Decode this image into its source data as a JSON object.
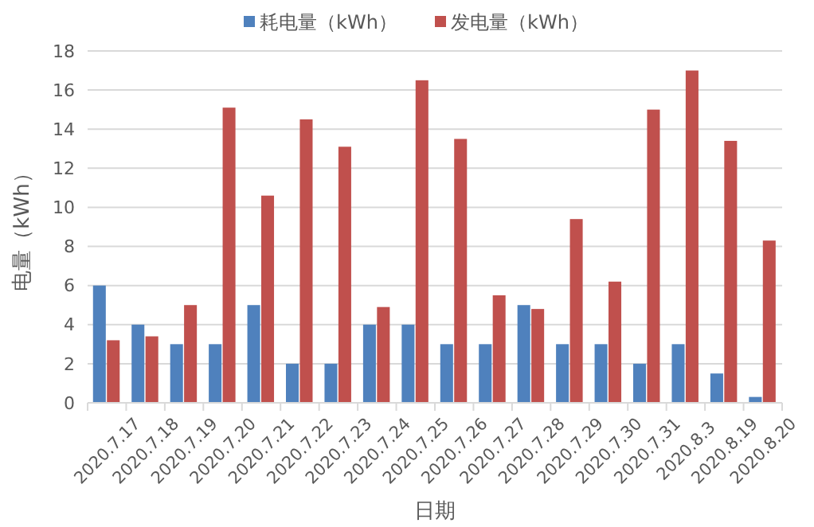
{
  "chart_data": {
    "type": "bar",
    "xlabel": "日期",
    "ylabel": "电量（kWh）",
    "categories": [
      "2020.7.17",
      "2020.7.18",
      "2020.7.19",
      "2020.7.20",
      "2020.7.21",
      "2020.7.22",
      "2020.7.23",
      "2020.7.24",
      "2020.7.25",
      "2020.7.26",
      "2020.7.27",
      "2020.7.28",
      "2020.7.29",
      "2020.7.30",
      "2020.7.31",
      "2020.8.3",
      "2020.8.19",
      "2020.8.20"
    ],
    "series": [
      {
        "name": "耗电量（kWh）",
        "color": "#4f81bd",
        "values": [
          6,
          4,
          3,
          3,
          5,
          2,
          2,
          4,
          4,
          3,
          3,
          5,
          3,
          3,
          2,
          3,
          1.5,
          0.3
        ]
      },
      {
        "name": "发电量（kWh）",
        "color": "#c0504d",
        "values": [
          3.2,
          3.4,
          5,
          15.1,
          10.6,
          14.5,
          13.1,
          4.9,
          16.5,
          13.5,
          5.5,
          4.8,
          9.4,
          6.2,
          15,
          17,
          13.4,
          8.3
        ]
      }
    ],
    "ylim": [
      0,
      18
    ],
    "yticks": [
      0,
      2,
      4,
      6,
      8,
      10,
      12,
      14,
      16,
      18
    ],
    "grid": "y",
    "legend": "top"
  }
}
